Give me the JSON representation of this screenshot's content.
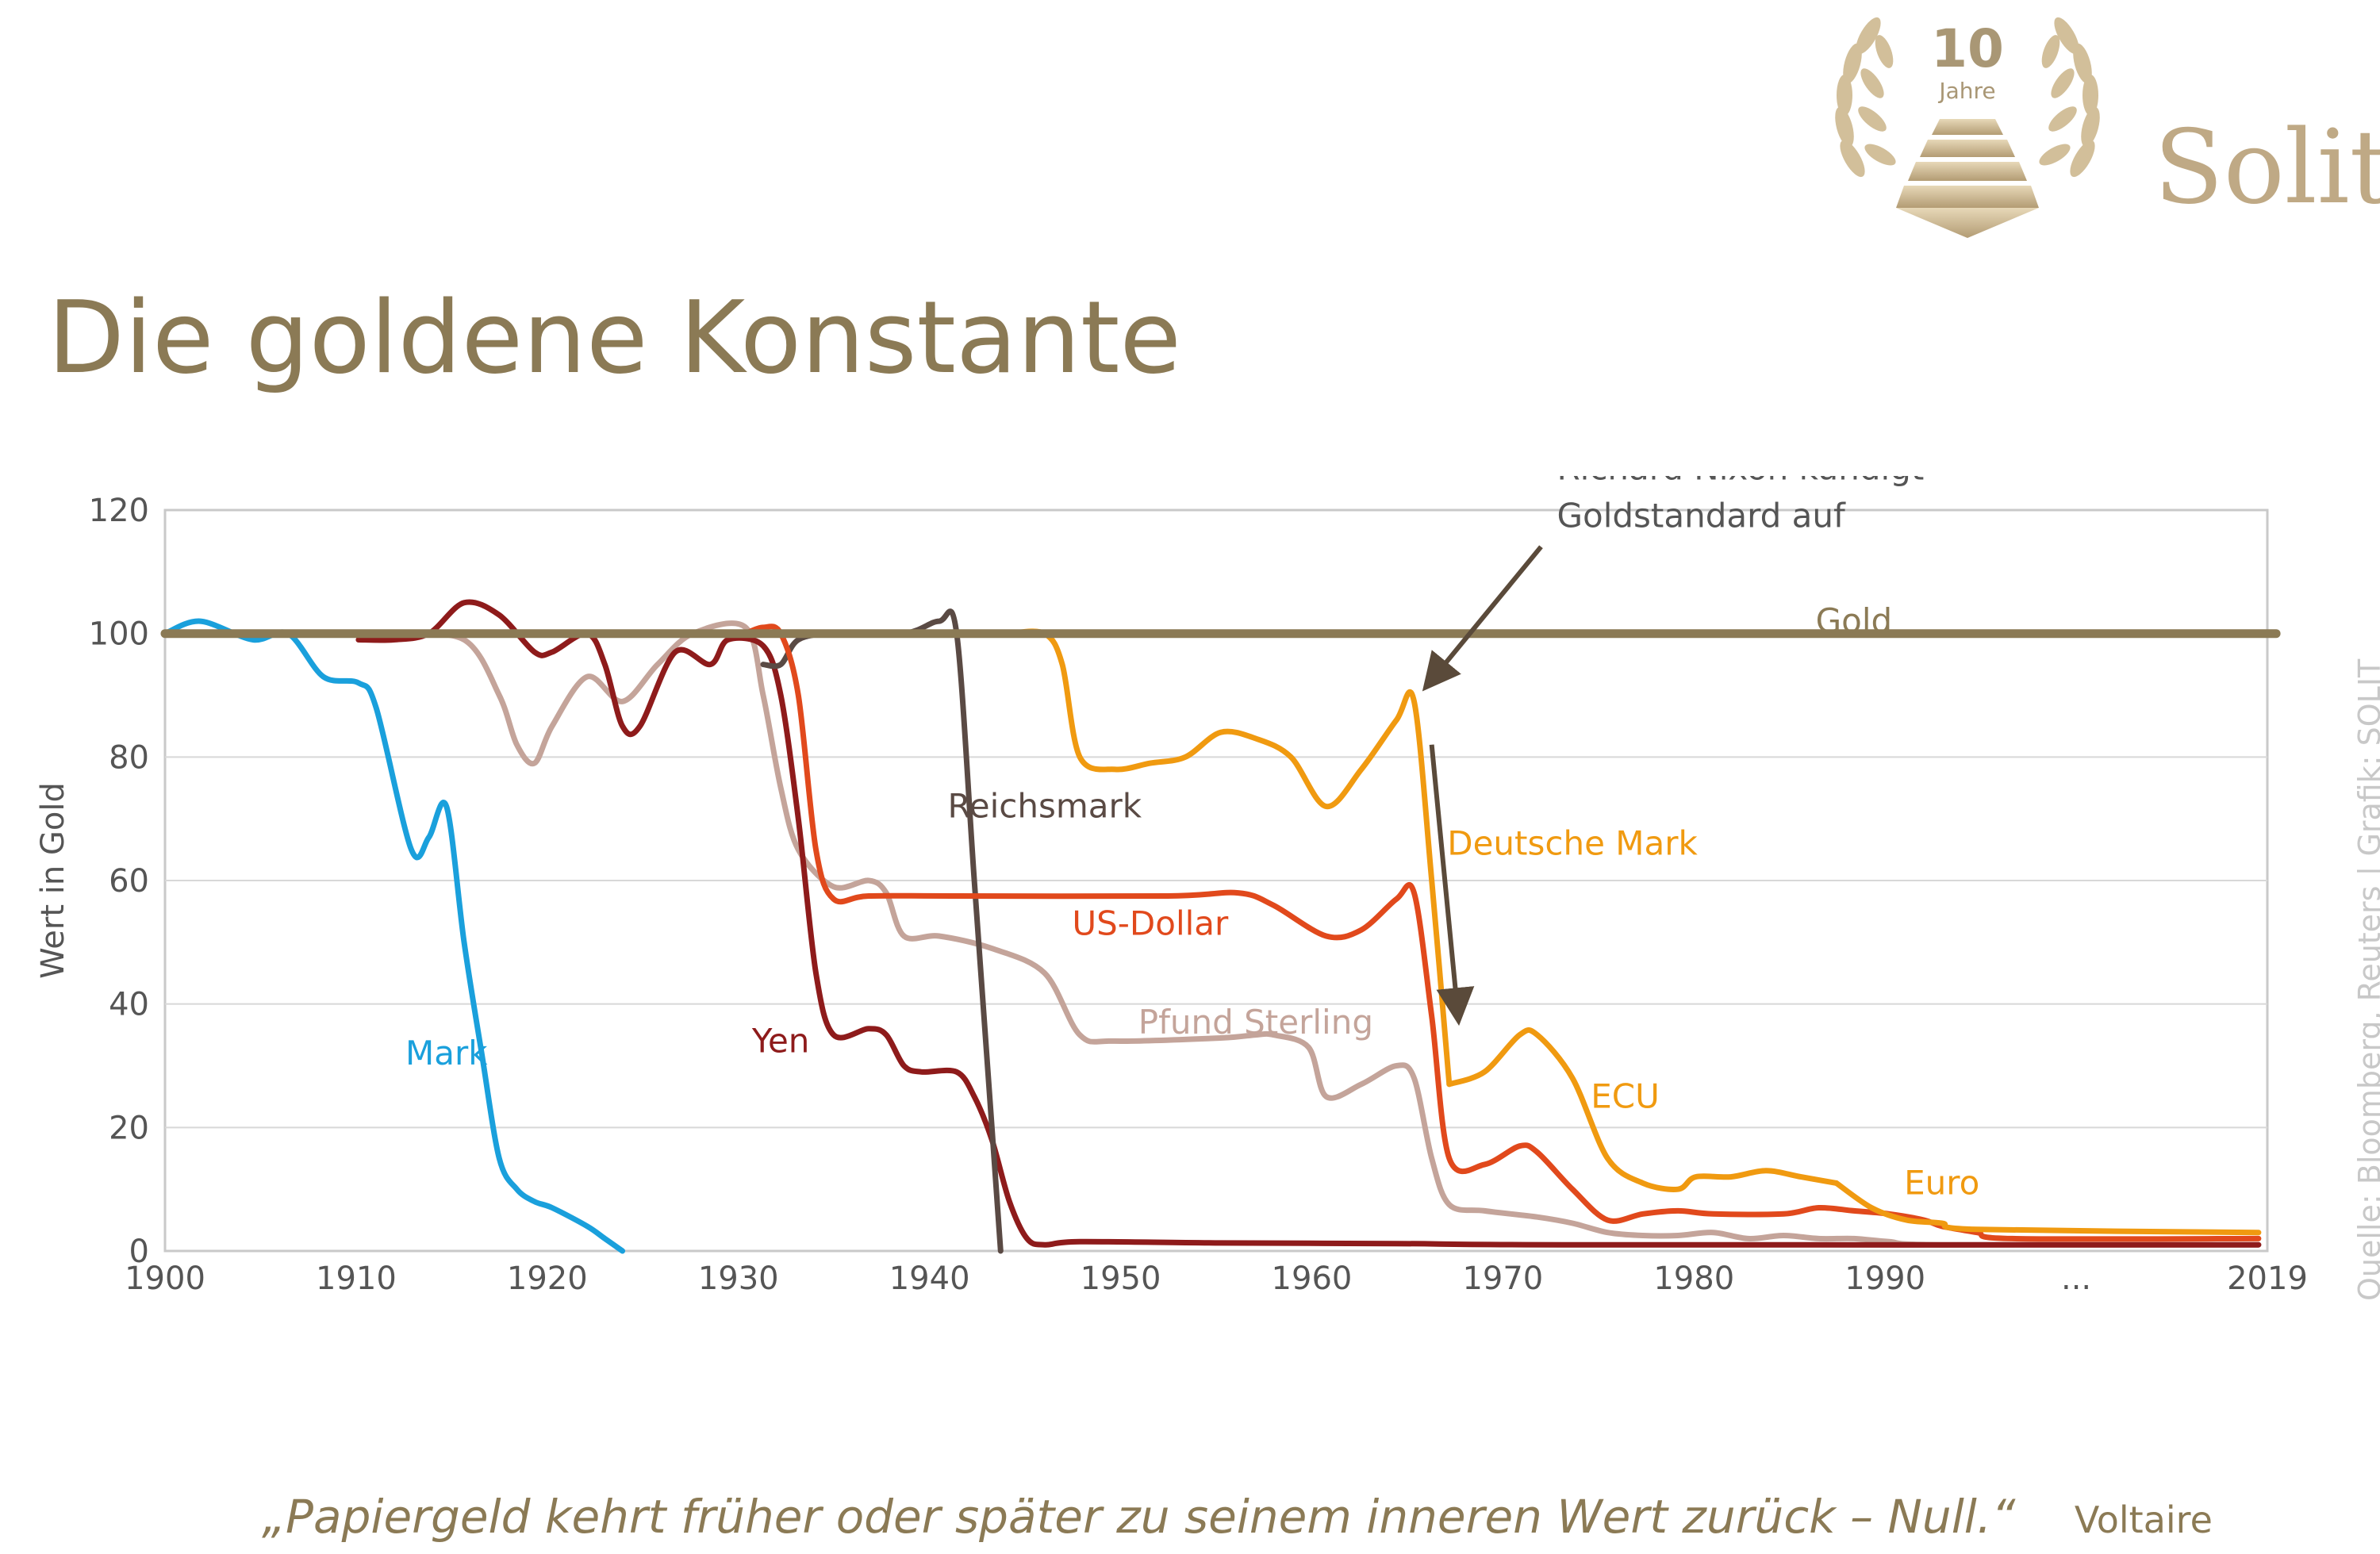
{
  "header": {
    "logo_number": "10",
    "logo_caption": "Jahre",
    "brand": "Solit"
  },
  "title": "Die goldene Konstante",
  "source": "Quelle: Bloomberg, Reuters | Grafik: SOLIT",
  "quote": "„Papiergeld kehrt früher oder später zu seinem inneren Wert zurück – Null.“",
  "quote_author": "Voltaire",
  "colors": {
    "gold": "#8b7a55",
    "mark": "#1aa0dc",
    "reichsmark": "#5a4a44",
    "yen": "#8e1b1b",
    "us_dollar": "#e1491c",
    "pfund_sterling": "#c4a49a",
    "deutsche_mark": "#f09a10",
    "arrow": "#5a4a3a",
    "axis": "#c9c9c9",
    "text": "#555555"
  },
  "chart_data": {
    "type": "line",
    "ylabel": "Wert in Gold",
    "ylim": [
      0,
      120
    ],
    "yticks": [
      0,
      20,
      40,
      60,
      80,
      100,
      120
    ],
    "xticks": [
      "1900",
      "1910",
      "1920",
      "1930",
      "1940",
      "1950",
      "1960",
      "1970",
      "1980",
      "1990",
      "...",
      "2019"
    ],
    "grid": "horizontal",
    "annotations": [
      {
        "text_lines": [
          "Richard Nixon kündigt",
          "Goldstandard auf"
        ],
        "x": 1971,
        "y": 89
      },
      {
        "text": "...",
        "note": "axis break between 1990s and 2019"
      }
    ],
    "series": [
      {
        "name": "Gold",
        "color_key": "gold",
        "points": [
          [
            1900,
            100
          ],
          [
            2020,
            100
          ]
        ]
      },
      {
        "name": "Mark",
        "color_key": "mark",
        "points": [
          [
            1900,
            100
          ],
          [
            1902,
            102
          ],
          [
            1905,
            99
          ],
          [
            1907,
            100
          ],
          [
            1909,
            93
          ],
          [
            1911,
            92
          ],
          [
            1912,
            88
          ],
          [
            1914,
            65
          ],
          [
            1915,
            67
          ],
          [
            1916,
            72
          ],
          [
            1917,
            50
          ],
          [
            1918,
            32
          ],
          [
            1919,
            15
          ],
          [
            1920,
            10
          ],
          [
            1921,
            8
          ],
          [
            1922,
            7
          ],
          [
            1924,
            4
          ],
          [
            1925,
            2
          ],
          [
            1926,
            0
          ]
        ]
      },
      {
        "name": "Reichsmark",
        "color_key": "reichsmark",
        "points": [
          [
            1934,
            95
          ],
          [
            1935,
            95
          ],
          [
            1936,
            99
          ],
          [
            1938,
            100
          ],
          [
            1942,
            100
          ],
          [
            1944,
            102
          ],
          [
            1945,
            100
          ],
          [
            1946,
            60
          ],
          [
            1947,
            20
          ],
          [
            1947.5,
            0
          ]
        ]
      },
      {
        "name": "Yen",
        "color_key": "yen",
        "points": [
          [
            1911,
            99
          ],
          [
            1913,
            99
          ],
          [
            1915,
            100
          ],
          [
            1917,
            105
          ],
          [
            1919,
            103
          ],
          [
            1921,
            97
          ],
          [
            1922,
            97
          ],
          [
            1924,
            100
          ],
          [
            1925,
            95
          ],
          [
            1926,
            85
          ],
          [
            1927,
            85
          ],
          [
            1929,
            97
          ],
          [
            1931,
            95
          ],
          [
            1932,
            99
          ],
          [
            1934,
            98
          ],
          [
            1935,
            90
          ],
          [
            1936,
            70
          ],
          [
            1937,
            45
          ],
          [
            1938,
            35
          ],
          [
            1940,
            36
          ],
          [
            1941,
            35
          ],
          [
            1942,
            30
          ],
          [
            1943,
            29
          ],
          [
            1945,
            29
          ],
          [
            1946,
            25
          ],
          [
            1947,
            18
          ],
          [
            1948,
            8
          ],
          [
            1949,
            2
          ],
          [
            1950,
            1
          ],
          [
            1952,
            1.5
          ],
          [
            1960,
            1.3
          ],
          [
            1970,
            1.2
          ],
          [
            1980,
            1
          ],
          [
            2019,
            1
          ]
        ]
      },
      {
        "name": "US-Dollar",
        "color_key": "us_dollar",
        "points": [
          [
            1933,
            100
          ],
          [
            1934,
            101
          ],
          [
            1935,
            100
          ],
          [
            1936,
            90
          ],
          [
            1937,
            65
          ],
          [
            1938,
            57
          ],
          [
            1940,
            57.5
          ],
          [
            1945,
            57.5
          ],
          [
            1957,
            57.5
          ],
          [
            1961,
            58
          ],
          [
            1963,
            56
          ],
          [
            1966,
            51
          ],
          [
            1968,
            52
          ],
          [
            1970,
            57
          ],
          [
            1971,
            58
          ],
          [
            1972,
            38
          ],
          [
            1973,
            15
          ],
          [
            1975,
            14
          ],
          [
            1977,
            17
          ],
          [
            1978,
            16
          ],
          [
            1980,
            10
          ],
          [
            1982,
            5
          ],
          [
            1984,
            6
          ],
          [
            1986,
            6.5
          ],
          [
            1988,
            6
          ],
          [
            1992,
            6
          ],
          [
            1994,
            7
          ],
          [
            1996,
            6.5
          ],
          [
            1998,
            6
          ],
          [
            2000,
            5
          ],
          [
            2001,
            4
          ],
          [
            2003,
            3
          ],
          [
            2005,
            2
          ],
          [
            2019,
            2
          ]
        ]
      },
      {
        "name": "Pfund Sterling",
        "color_key": "pfund_sterling",
        "points": [
          [
            1913,
            100
          ],
          [
            1917,
            99
          ],
          [
            1919,
            90
          ],
          [
            1920,
            82
          ],
          [
            1921,
            79
          ],
          [
            1922,
            85
          ],
          [
            1924,
            93
          ],
          [
            1926,
            89
          ],
          [
            1928,
            95
          ],
          [
            1930,
            100
          ],
          [
            1933,
            101
          ],
          [
            1934,
            90
          ],
          [
            1935,
            75
          ],
          [
            1936,
            65
          ],
          [
            1938,
            59
          ],
          [
            1940,
            60
          ],
          [
            1941,
            58
          ],
          [
            1942,
            51
          ],
          [
            1944,
            51
          ],
          [
            1947,
            49
          ],
          [
            1950,
            45
          ],
          [
            1952,
            35
          ],
          [
            1954,
            34
          ],
          [
            1960,
            34.5
          ],
          [
            1962,
            35
          ],
          [
            1963,
            35
          ],
          [
            1965,
            33
          ],
          [
            1966,
            25
          ],
          [
            1968,
            27
          ],
          [
            1970,
            30
          ],
          [
            1971,
            28
          ],
          [
            1972,
            15
          ],
          [
            1973,
            7.5
          ],
          [
            1975,
            6.5
          ],
          [
            1978,
            5.5
          ],
          [
            1980,
            4.5
          ],
          [
            1982,
            3
          ],
          [
            1984,
            2.5
          ],
          [
            1986,
            2.5
          ],
          [
            1988,
            3
          ],
          [
            1990,
            2
          ],
          [
            1992,
            2.5
          ],
          [
            1994,
            2
          ],
          [
            1996,
            2
          ],
          [
            1998,
            1.5
          ],
          [
            2001,
            1
          ],
          [
            2019,
            1
          ]
        ]
      },
      {
        "name": "Deutsche Mark",
        "color_key": "deutsche_mark",
        "points": [
          [
            1948,
            100
          ],
          [
            1950,
            100
          ],
          [
            1951,
            95
          ],
          [
            1952,
            80
          ],
          [
            1954,
            78
          ],
          [
            1956,
            79
          ],
          [
            1958,
            80
          ],
          [
            1960,
            84
          ],
          [
            1962,
            83
          ],
          [
            1964,
            80
          ],
          [
            1966,
            72
          ],
          [
            1968,
            78
          ],
          [
            1970,
            86
          ],
          [
            1971,
            89
          ],
          [
            1972,
            60
          ],
          [
            1973,
            27
          ]
        ]
      },
      {
        "name": "ECU",
        "color_key": "deutsche_mark",
        "points": [
          [
            1973,
            27
          ],
          [
            1975,
            29
          ],
          [
            1977,
            35
          ],
          [
            1978,
            35
          ],
          [
            1980,
            28
          ],
          [
            1982,
            15
          ],
          [
            1984,
            11
          ],
          [
            1986,
            10
          ],
          [
            1987,
            12
          ],
          [
            1989,
            12
          ],
          [
            1991,
            13
          ],
          [
            1993,
            12
          ],
          [
            1995,
            11
          ]
        ]
      },
      {
        "name": "Euro",
        "color_key": "deutsche_mark",
        "points": [
          [
            1995,
            11
          ],
          [
            1997,
            7
          ],
          [
            1999,
            5
          ],
          [
            2001,
            4.5
          ],
          [
            2003,
            3.5
          ],
          [
            2019,
            3
          ]
        ]
      }
    ],
    "series_labels": [
      {
        "name": "Gold",
        "x": 1996,
        "y": 102
      },
      {
        "name": "Mark",
        "x": 1916,
        "y": 32
      },
      {
        "name": "Reichsmark",
        "x": 1950,
        "y": 72
      },
      {
        "name": "Yen",
        "x": 1935,
        "y": 34
      },
      {
        "name": "US-Dollar",
        "x": 1956,
        "y": 53
      },
      {
        "name": "Pfund Sterling",
        "x": 1962,
        "y": 37
      },
      {
        "name": "Deutsche Mark",
        "x": 1980,
        "y": 66
      },
      {
        "name": "ECU",
        "x": 1983,
        "y": 25
      },
      {
        "name": "Euro",
        "x": 2001,
        "y": 11
      }
    ]
  }
}
